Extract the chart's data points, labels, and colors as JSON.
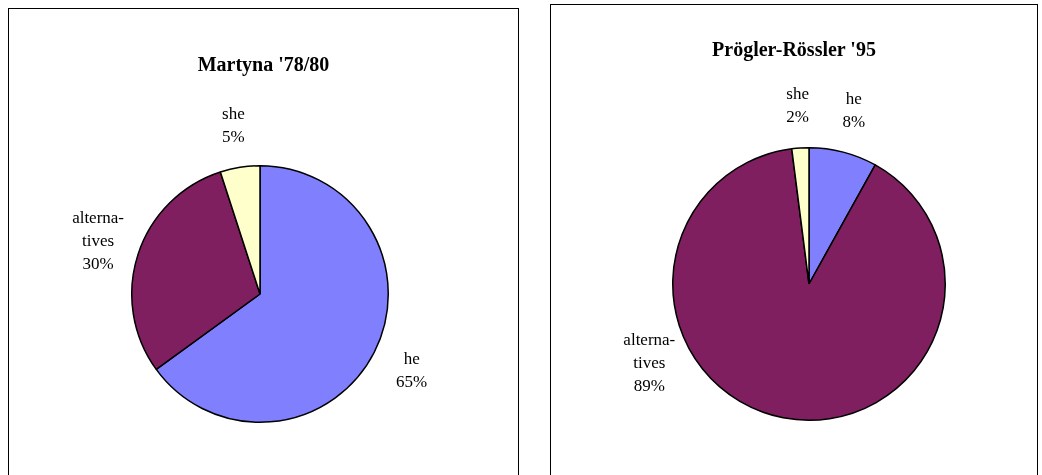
{
  "chart_data": [
    {
      "type": "pie",
      "title": "Martyna '78/80",
      "categories": [
        "he",
        "alterna-\ntives",
        "she"
      ],
      "values": [
        65,
        30,
        5
      ],
      "value_labels": [
        "65%",
        "30%",
        "5%"
      ],
      "colors": [
        "#8080ff",
        "#7f1f5f",
        "#ffffcc"
      ],
      "legend": false
    },
    {
      "type": "pie",
      "title": "Prögler-Rössler '95",
      "categories": [
        "he",
        "alterna-\ntives",
        "she"
      ],
      "values": [
        8,
        89,
        2
      ],
      "value_labels": [
        "8%",
        "89%",
        "2%"
      ],
      "colors": [
        "#8080ff",
        "#7f1f5f",
        "#ffffcc"
      ],
      "legend": false
    }
  ]
}
